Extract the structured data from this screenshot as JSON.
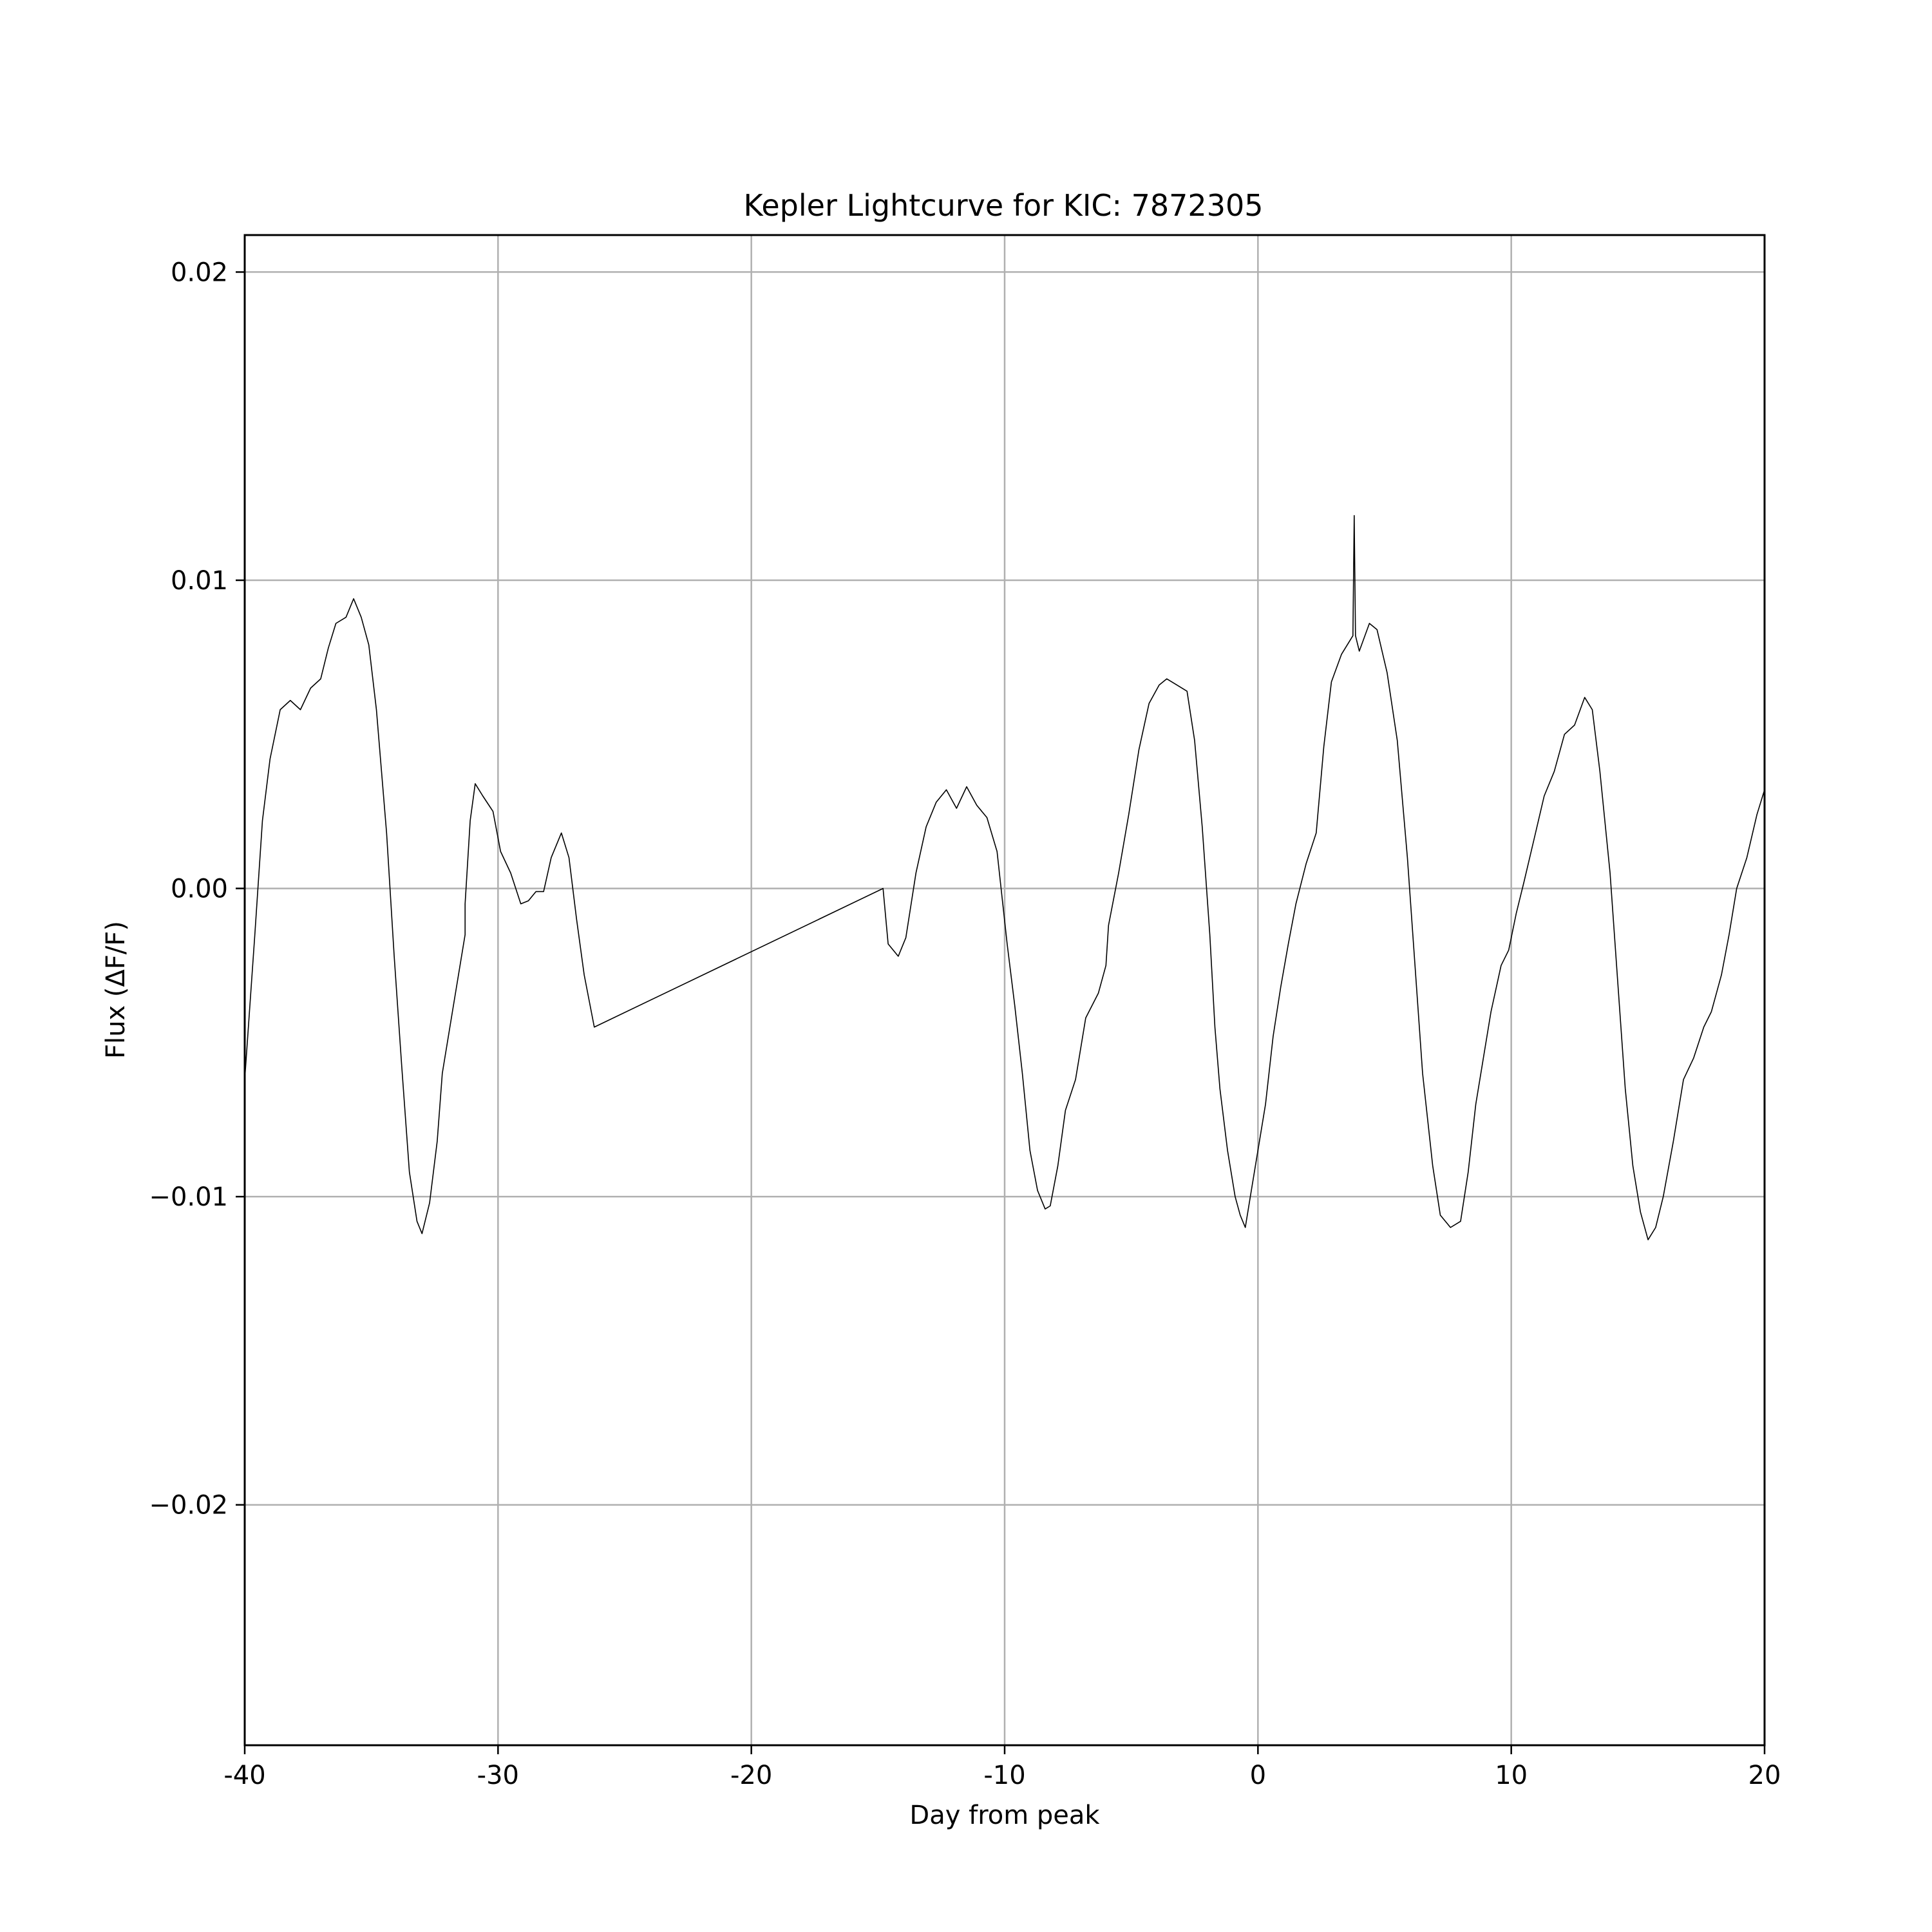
{
  "chart_data": {
    "type": "line",
    "title": "Kepler Lightcurve for KIC: 7872305",
    "xlabel": "Day from peak",
    "ylabel": "Flux (ΔF/F)",
    "xlim": [
      -40,
      20
    ],
    "ylim": [
      -0.0278,
      0.0212
    ],
    "x_ticks": [
      -40,
      -30,
      -20,
      -10,
      0,
      10,
      20
    ],
    "x_tick_labels": [
      "-40",
      "-30",
      "-20",
      "-10",
      "0",
      "10",
      "20"
    ],
    "y_ticks": [
      0.02,
      0.01,
      0.0,
      -0.01,
      -0.02
    ],
    "y_tick_labels": [
      "0.02",
      "0.01",
      "0.00",
      "−0.01",
      "−0.02"
    ],
    "grid": true,
    "line_color": "#000000",
    "grid_color": "#b0b0b0",
    "series": [
      {
        "points": [
          [
            -40.0,
            -0.0062
          ],
          [
            -39.6,
            -0.0015
          ],
          [
            -39.3,
            0.0022
          ],
          [
            -39.0,
            0.0042
          ],
          [
            -38.6,
            0.0058
          ],
          [
            -38.2,
            0.0061
          ],
          [
            -37.8,
            0.0058
          ],
          [
            -37.4,
            0.0065
          ],
          [
            -37.0,
            0.0068
          ],
          [
            -36.7,
            0.0078
          ],
          [
            -36.4,
            0.0086
          ],
          [
            -36.0,
            0.0088
          ],
          [
            -35.7,
            0.0094
          ],
          [
            -35.4,
            0.0088
          ],
          [
            -35.1,
            0.0079
          ],
          [
            -34.8,
            0.0058
          ],
          [
            -34.4,
            0.0018
          ],
          [
            -34.1,
            -0.0022
          ],
          [
            -33.8,
            -0.0058
          ],
          [
            -33.5,
            -0.0092
          ],
          [
            -33.2,
            -0.0108
          ],
          [
            -33.0,
            -0.0112
          ],
          [
            -32.7,
            -0.0102
          ],
          [
            -32.4,
            -0.0082
          ],
          [
            -32.2,
            -0.006
          ],
          [
            -31.8,
            -0.004
          ],
          [
            -31.3,
            -0.0015
          ],
          [
            -31.3,
            -0.0005
          ],
          [
            -31.1,
            0.0022
          ],
          [
            -30.9,
            0.0034
          ],
          [
            -30.6,
            0.003
          ],
          [
            -30.2,
            0.0025
          ],
          [
            -29.9,
            0.0012
          ],
          [
            -29.5,
            0.0005
          ],
          [
            -29.1,
            -0.0005
          ],
          [
            -28.8,
            -0.0004
          ],
          [
            -28.5,
            -0.0001
          ],
          [
            -28.2,
            -0.0001
          ],
          [
            -27.9,
            0.001
          ],
          [
            -27.5,
            0.0018
          ],
          [
            -27.2,
            0.001
          ],
          [
            -26.9,
            -0.001
          ],
          [
            -26.6,
            -0.0028
          ],
          [
            -26.2,
            -0.0045
          ],
          [
            -14.8,
            0.0
          ],
          [
            -14.6,
            -0.0018
          ],
          [
            -14.2,
            -0.0022
          ],
          [
            -13.9,
            -0.0016
          ],
          [
            -13.5,
            0.0005
          ],
          [
            -13.1,
            0.002
          ],
          [
            -12.7,
            0.0028
          ],
          [
            -12.3,
            0.0032
          ],
          [
            -11.9,
            0.0026
          ],
          [
            -11.5,
            0.0033
          ],
          [
            -11.1,
            0.0027
          ],
          [
            -10.7,
            0.0023
          ],
          [
            -10.3,
            0.0012
          ],
          [
            -9.9,
            -0.0018
          ],
          [
            -9.6,
            -0.0038
          ],
          [
            -9.3,
            -0.006
          ],
          [
            -9.0,
            -0.0085
          ],
          [
            -8.7,
            -0.0098
          ],
          [
            -8.4,
            -0.0104
          ],
          [
            -8.2,
            -0.0103
          ],
          [
            -7.9,
            -0.009
          ],
          [
            -7.6,
            -0.0072
          ],
          [
            -7.2,
            -0.0062
          ],
          [
            -6.8,
            -0.0042
          ],
          [
            -6.3,
            -0.0034
          ],
          [
            -6.0,
            -0.0025
          ],
          [
            -5.9,
            -0.0012
          ],
          [
            -5.5,
            0.0005
          ],
          [
            -5.1,
            0.0024
          ],
          [
            -4.7,
            0.0045
          ],
          [
            -4.3,
            0.006
          ],
          [
            -3.9,
            0.0066
          ],
          [
            -3.6,
            0.0068
          ],
          [
            -3.2,
            0.0066
          ],
          [
            -2.8,
            0.0064
          ],
          [
            -2.5,
            0.0048
          ],
          [
            -2.2,
            0.002
          ],
          [
            -1.9,
            -0.0015
          ],
          [
            -1.7,
            -0.0045
          ],
          [
            -1.5,
            -0.0065
          ],
          [
            -1.2,
            -0.0085
          ],
          [
            -0.9,
            -0.01
          ],
          [
            -0.7,
            -0.0106
          ],
          [
            -0.5,
            -0.011
          ],
          [
            -0.3,
            -0.01
          ],
          [
            0.0,
            -0.0085
          ],
          [
            0.3,
            -0.007
          ],
          [
            0.6,
            -0.0048
          ],
          [
            0.9,
            -0.0032
          ],
          [
            1.2,
            -0.0018
          ],
          [
            1.5,
            -0.0005
          ],
          [
            1.9,
            0.0008
          ],
          [
            2.3,
            0.0018
          ],
          [
            2.6,
            0.0046
          ],
          [
            2.9,
            0.0067
          ],
          [
            3.3,
            0.0076
          ],
          [
            3.6,
            0.008
          ],
          [
            3.75,
            0.0082
          ],
          [
            3.8,
            0.0121
          ],
          [
            3.85,
            0.0082
          ],
          [
            4.0,
            0.0077
          ],
          [
            4.4,
            0.0086
          ],
          [
            4.7,
            0.0084
          ],
          [
            5.1,
            0.007
          ],
          [
            5.5,
            0.0048
          ],
          [
            5.9,
            0.001
          ],
          [
            6.2,
            -0.0025
          ],
          [
            6.5,
            -0.006
          ],
          [
            6.9,
            -0.009
          ],
          [
            7.2,
            -0.0106
          ],
          [
            7.6,
            -0.011
          ],
          [
            8.0,
            -0.0108
          ],
          [
            8.3,
            -0.0092
          ],
          [
            8.6,
            -0.007
          ],
          [
            8.9,
            -0.0055
          ],
          [
            9.2,
            -0.004
          ],
          [
            9.6,
            -0.0025
          ],
          [
            9.9,
            -0.002
          ],
          [
            10.2,
            -0.0008
          ],
          [
            10.5,
            0.0002
          ],
          [
            10.9,
            0.0016
          ],
          [
            11.3,
            0.003
          ],
          [
            11.7,
            0.0038
          ],
          [
            12.1,
            0.005
          ],
          [
            12.5,
            0.0053
          ],
          [
            12.9,
            0.0062
          ],
          [
            13.2,
            0.0058
          ],
          [
            13.5,
            0.0038
          ],
          [
            13.9,
            0.0005
          ],
          [
            14.2,
            -0.003
          ],
          [
            14.5,
            -0.0065
          ],
          [
            14.8,
            -0.009
          ],
          [
            15.1,
            -0.0105
          ],
          [
            15.4,
            -0.0114
          ],
          [
            15.7,
            -0.011
          ],
          [
            16.0,
            -0.01
          ],
          [
            16.4,
            -0.0082
          ],
          [
            16.8,
            -0.0062
          ],
          [
            17.2,
            -0.0055
          ],
          [
            17.6,
            -0.0045
          ],
          [
            17.9,
            -0.004
          ],
          [
            18.3,
            -0.0028
          ],
          [
            18.6,
            -0.0015
          ],
          [
            18.9,
            0.0
          ],
          [
            19.3,
            0.001
          ],
          [
            19.7,
            0.0024
          ],
          [
            20.0,
            0.0032
          ]
        ]
      }
    ]
  }
}
